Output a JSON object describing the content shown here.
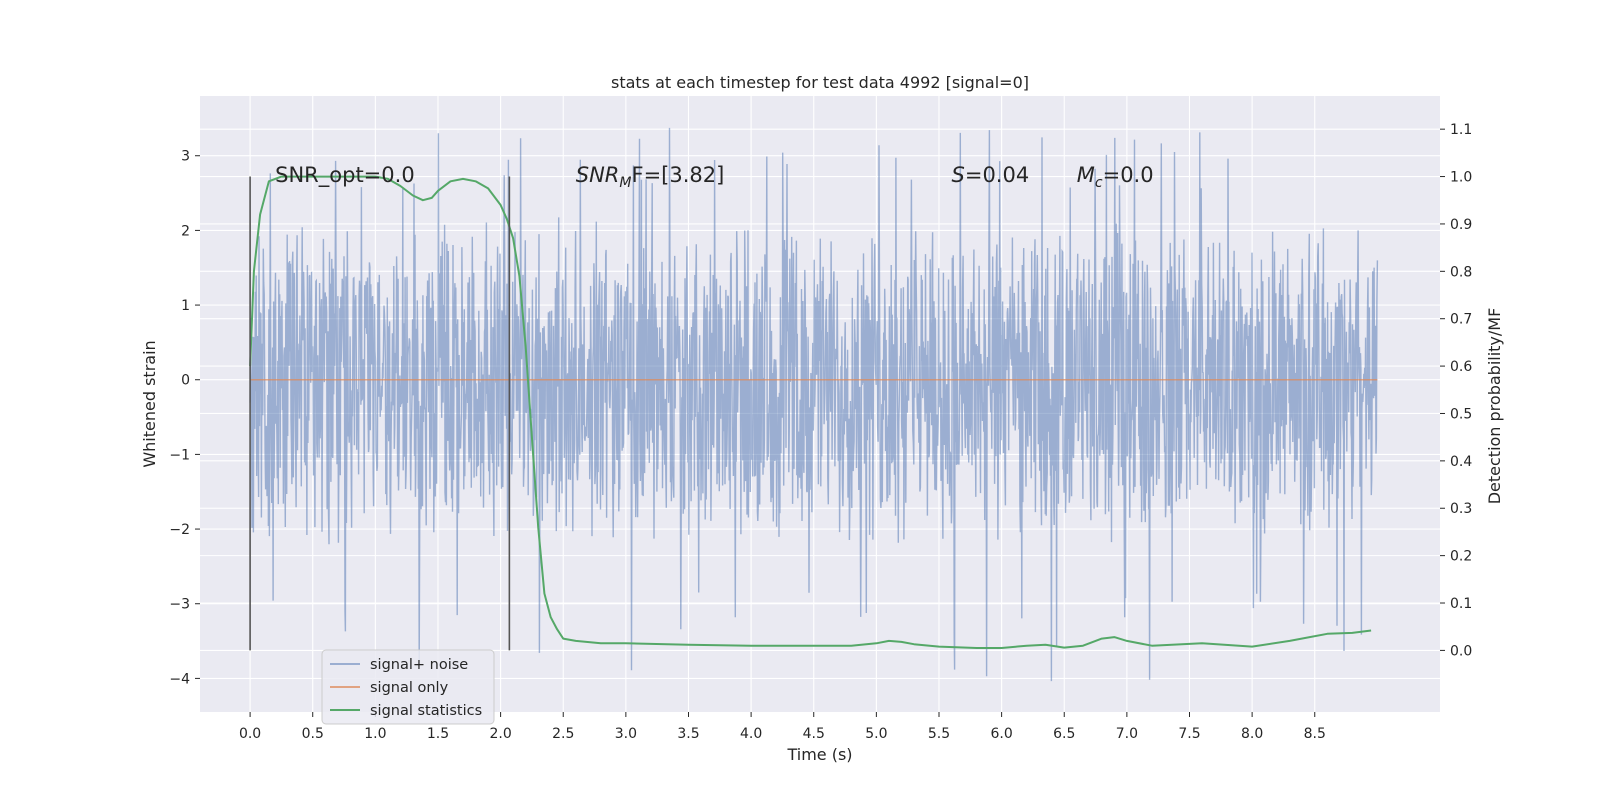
{
  "chart_data": {
    "type": "line",
    "title": "stats at each timestep for test data 4992 [signal=0]",
    "xlabel": "Time (s)",
    "ylabel_left": "Whitened strain",
    "ylabel_right": "Detection probability/MF",
    "xlim": [
      -0.4,
      9.5
    ],
    "ylim_left": [
      -4.45,
      3.8
    ],
    "ylim_right": [
      -0.13,
      1.17
    ],
    "x_ticks": [
      "0.0",
      "0.5",
      "1.0",
      "1.5",
      "2.0",
      "2.5",
      "3.0",
      "3.5",
      "4.0",
      "4.5",
      "5.0",
      "5.5",
      "6.0",
      "6.5",
      "7.0",
      "7.5",
      "8.0",
      "8.5"
    ],
    "y_left_ticks": [
      "3",
      "2",
      "1",
      "0",
      "−1",
      "−2",
      "−3",
      "−4"
    ],
    "y_right_ticks": [
      "1.1",
      "1.0",
      "0.9",
      "0.8",
      "0.7",
      "0.6",
      "0.5",
      "0.4",
      "0.3",
      "0.2",
      "0.1",
      "0.0"
    ],
    "grid": true,
    "legend_position": "lower-left",
    "annotations": [
      {
        "label": "SNR_opt=0.0",
        "x": 0.2
      },
      {
        "prefix": "SNR",
        "sub": "M",
        "suffix": "F=[3.82]",
        "x": 2.6
      },
      {
        "prefix": "S",
        "sub": "",
        "suffix": "=0.04",
        "x": 5.6
      },
      {
        "prefix": "M",
        "sub": "c",
        "suffix": "=0.0",
        "x": 6.6
      }
    ],
    "vlines": [
      0.0,
      2.07
    ],
    "series": [
      {
        "name": "signal+ noise",
        "color": "#4c72b0",
        "opacity": 0.5,
        "axis": "left",
        "x_range": [
          0.0,
          9.0
        ],
        "envelope": {
          "typical_max": 1.6,
          "typical_min": -1.7,
          "max": 3.4,
          "min": -4.05
        }
      },
      {
        "name": "signal only",
        "color": "#dd8452",
        "axis": "left",
        "x": [
          0.0,
          9.0
        ],
        "y": [
          0.0,
          0.0
        ]
      },
      {
        "name": "signal statistics",
        "color": "#55a868",
        "axis": "right",
        "x": [
          0.0,
          0.03,
          0.08,
          0.15,
          0.25,
          0.4,
          0.6,
          0.8,
          1.0,
          1.1,
          1.2,
          1.3,
          1.38,
          1.45,
          1.5,
          1.6,
          1.7,
          1.8,
          1.9,
          2.0,
          2.05,
          2.1,
          2.15,
          2.2,
          2.25,
          2.3,
          2.35,
          2.4,
          2.45,
          2.5,
          2.6,
          2.8,
          3.0,
          3.5,
          4.0,
          4.5,
          4.8,
          5.0,
          5.1,
          5.2,
          5.3,
          5.5,
          5.8,
          6.0,
          6.2,
          6.35,
          6.5,
          6.65,
          6.8,
          6.9,
          7.0,
          7.2,
          7.6,
          8.0,
          8.3,
          8.6,
          8.8,
          8.95
        ],
        "y": [
          0.6,
          0.8,
          0.92,
          0.99,
          1.0,
          1.0,
          1.0,
          1.0,
          1.0,
          0.995,
          0.98,
          0.96,
          0.95,
          0.955,
          0.97,
          0.99,
          0.995,
          0.99,
          0.975,
          0.94,
          0.91,
          0.87,
          0.79,
          0.64,
          0.45,
          0.26,
          0.12,
          0.07,
          0.045,
          0.025,
          0.02,
          0.015,
          0.015,
          0.012,
          0.01,
          0.01,
          0.01,
          0.015,
          0.02,
          0.018,
          0.013,
          0.008,
          0.005,
          0.005,
          0.01,
          0.012,
          0.006,
          0.01,
          0.025,
          0.028,
          0.02,
          0.01,
          0.015,
          0.008,
          0.02,
          0.035,
          0.037,
          0.042
        ]
      }
    ]
  }
}
